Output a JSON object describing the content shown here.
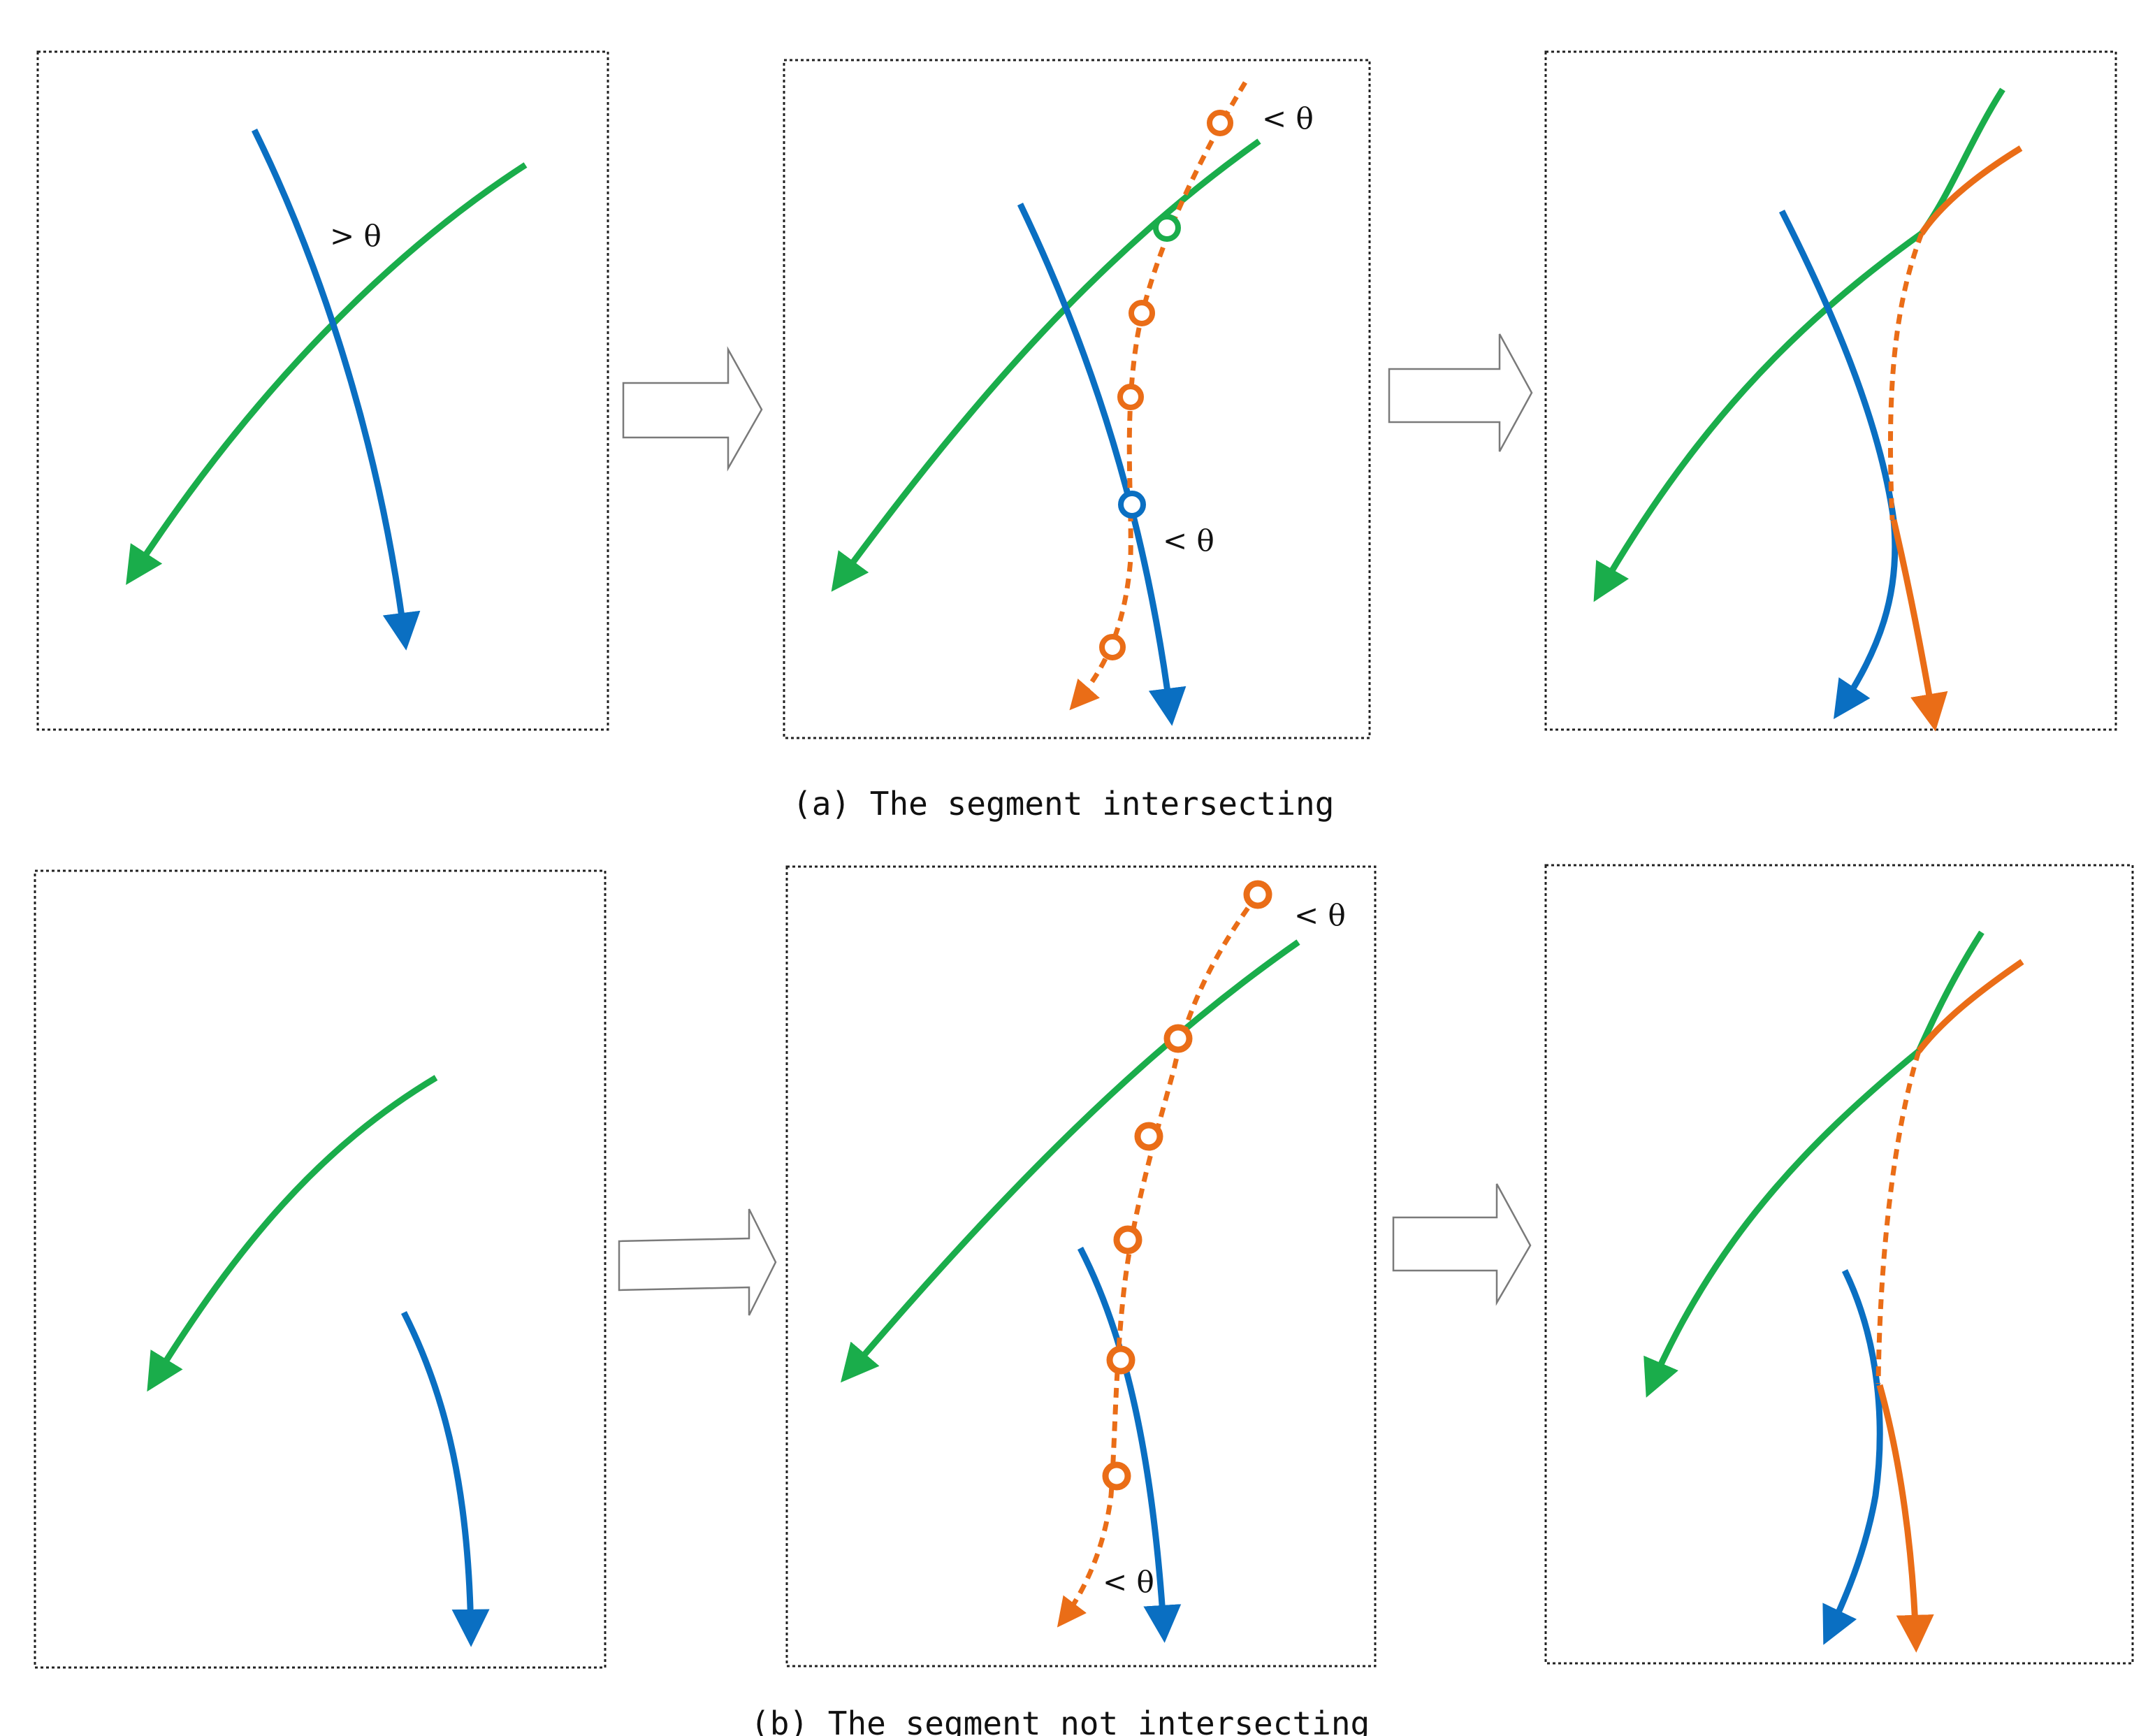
{
  "colors": {
    "green": "#1aad4b",
    "blue": "#0a6fc2",
    "orange": "#ea6d17",
    "frame": "#222222",
    "arrow_outline": "#7a7a7a"
  },
  "labels": {
    "greater_theta": "> θ",
    "less_theta": "< θ"
  },
  "captions": {
    "a": "(a) The segment intersecting",
    "b": "(b) The segment not intersecting"
  },
  "icons": {
    "step_arrow": "right-outline-arrow-icon"
  }
}
